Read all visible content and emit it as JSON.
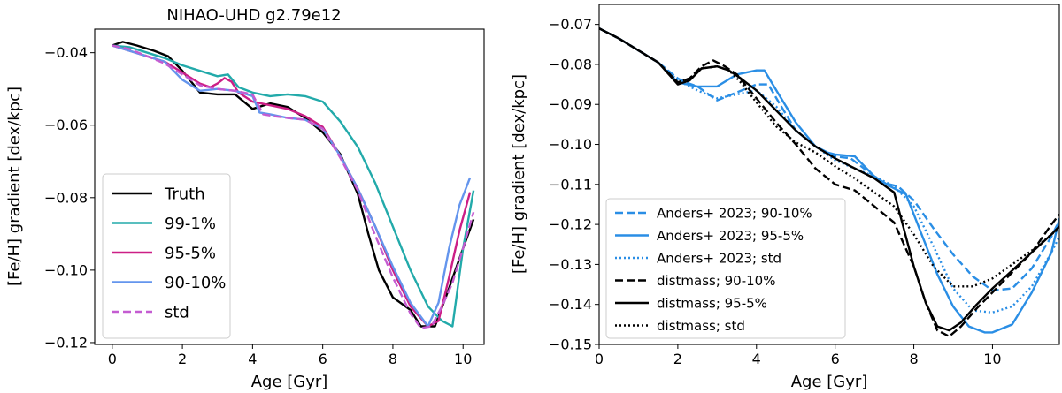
{
  "chart_data": [
    {
      "type": "line",
      "title": "NIHAO-UHD g2.79e12",
      "xlabel": "Age [Gyr]",
      "ylabel": "[Fe/H] gradient [dex/kpc]",
      "xlim": [
        -0.5,
        10.6
      ],
      "ylim": [
        -0.1205,
        -0.0335
      ],
      "xticks": [
        0,
        2,
        4,
        6,
        8,
        10
      ],
      "xtick_labels": [
        "0",
        "2",
        "4",
        "6",
        "8",
        "10"
      ],
      "yticks": [
        -0.04,
        -0.06,
        -0.08,
        -0.1,
        -0.12
      ],
      "ytick_labels": [
        "−0.04",
        "−0.06",
        "−0.08",
        "−0.10",
        "−0.12"
      ],
      "legend": "lower-left",
      "series": [
        {
          "name": "Truth",
          "color": "#000000",
          "dash": "solid",
          "x": [
            0,
            0.3,
            0.7,
            1.2,
            1.6,
            2.0,
            2.5,
            3.0,
            3.5,
            4.0,
            4.5,
            5.0,
            5.5,
            6.0,
            6.5,
            7.0,
            7.3,
            7.6,
            8.0,
            8.5,
            8.8,
            9.2,
            9.6,
            10.0,
            10.3
          ],
          "y": [
            -0.038,
            -0.037,
            -0.038,
            -0.0395,
            -0.041,
            -0.045,
            -0.051,
            -0.0515,
            -0.0515,
            -0.0555,
            -0.054,
            -0.055,
            -0.058,
            -0.062,
            -0.068,
            -0.079,
            -0.09,
            -0.1,
            -0.1075,
            -0.111,
            -0.1155,
            -0.1155,
            -0.105,
            -0.094,
            -0.086
          ]
        },
        {
          "name": "99-1%",
          "color": "#22aaaa",
          "dash": "solid",
          "x": [
            0,
            0.5,
            1.0,
            1.5,
            2.0,
            2.5,
            3.0,
            3.3,
            3.6,
            4.0,
            4.5,
            5.0,
            5.5,
            6.0,
            6.5,
            7.0,
            7.5,
            8.0,
            8.5,
            9.0,
            9.4,
            9.7,
            10.0,
            10.3
          ],
          "y": [
            -0.038,
            -0.0385,
            -0.04,
            -0.0415,
            -0.0435,
            -0.045,
            -0.0465,
            -0.046,
            -0.0495,
            -0.051,
            -0.052,
            -0.0515,
            -0.052,
            -0.0535,
            -0.059,
            -0.066,
            -0.076,
            -0.088,
            -0.1,
            -0.11,
            -0.114,
            -0.1155,
            -0.094,
            -0.078
          ]
        },
        {
          "name": "95-5%",
          "color": "#cc1f86",
          "dash": "solid",
          "x": [
            0,
            0.5,
            1.0,
            1.5,
            2.0,
            2.5,
            2.8,
            3.0,
            3.2,
            3.4,
            3.6,
            4.0,
            4.5,
            5.0,
            5.5,
            6.0,
            6.5,
            7.0,
            7.5,
            8.0,
            8.5,
            9.0,
            9.3,
            9.6,
            9.9,
            10.2
          ],
          "y": [
            -0.038,
            -0.0395,
            -0.041,
            -0.0425,
            -0.0455,
            -0.0485,
            -0.0495,
            -0.0485,
            -0.047,
            -0.048,
            -0.051,
            -0.0535,
            -0.0545,
            -0.0555,
            -0.0575,
            -0.0605,
            -0.0685,
            -0.0775,
            -0.088,
            -0.1,
            -0.11,
            -0.1155,
            -0.114,
            -0.102,
            -0.089,
            -0.0785
          ]
        },
        {
          "name": "90-10%",
          "color": "#6495ed",
          "dash": "solid",
          "x": [
            0,
            0.5,
            1.0,
            1.5,
            2.0,
            2.5,
            3.0,
            3.5,
            4.0,
            4.2,
            4.5,
            5.0,
            5.5,
            6.0,
            6.5,
            7.0,
            7.5,
            8.0,
            8.5,
            9.0,
            9.3,
            9.6,
            9.9,
            10.2
          ],
          "y": [
            -0.038,
            -0.0395,
            -0.041,
            -0.0425,
            -0.0475,
            -0.0505,
            -0.05,
            -0.0505,
            -0.052,
            -0.0565,
            -0.057,
            -0.058,
            -0.0585,
            -0.061,
            -0.0685,
            -0.0775,
            -0.088,
            -0.099,
            -0.109,
            -0.1155,
            -0.109,
            -0.094,
            -0.082,
            -0.0745
          ]
        },
        {
          "name": "std",
          "color": "#c45cd1",
          "dash": "dashed",
          "x": [
            0,
            0.5,
            1.0,
            1.5,
            2.0,
            2.5,
            3.0,
            3.5,
            4.0,
            4.3,
            4.6,
            5.0,
            5.5,
            6.0,
            6.5,
            7.0,
            7.5,
            8.0,
            8.5,
            8.8,
            9.1,
            9.4,
            9.7,
            10.0,
            10.3
          ],
          "y": [
            -0.038,
            -0.039,
            -0.041,
            -0.043,
            -0.046,
            -0.049,
            -0.05,
            -0.0505,
            -0.0515,
            -0.057,
            -0.0575,
            -0.058,
            -0.0585,
            -0.061,
            -0.069,
            -0.078,
            -0.0905,
            -0.102,
            -0.112,
            -0.116,
            -0.1155,
            -0.11,
            -0.1035,
            -0.094,
            -0.084
          ]
        }
      ],
      "legend_entries": [
        {
          "label": "Truth",
          "color": "#000000",
          "dash": "solid"
        },
        {
          "label": "99-1%",
          "color": "#22aaaa",
          "dash": "solid"
        },
        {
          "label": "95-5%",
          "color": "#cc1f86",
          "dash": "solid"
        },
        {
          "label": "90-10%",
          "color": "#6495ed",
          "dash": "solid"
        },
        {
          "label": "std",
          "color": "#c45cd1",
          "dash": "dashed"
        }
      ]
    },
    {
      "type": "line",
      "title": "",
      "xlabel": "Age [Gyr]",
      "ylabel": "[Fe/H] gradient [dex/kpc]",
      "xlim": [
        0,
        11.7
      ],
      "ylim": [
        -0.15,
        -0.065
      ],
      "xticks": [
        0,
        2,
        4,
        6,
        8,
        10
      ],
      "xtick_labels": [
        "0",
        "2",
        "4",
        "6",
        "8",
        "10"
      ],
      "yticks": [
        -0.07,
        -0.08,
        -0.09,
        -0.1,
        -0.11,
        -0.12,
        -0.13,
        -0.14,
        -0.15
      ],
      "ytick_labels": [
        "−0.07",
        "−0.08",
        "−0.09",
        "−0.10",
        "−0.11",
        "−0.12",
        "−0.13",
        "−0.14",
        "−0.15"
      ],
      "legend": "lower-left",
      "series": [
        {
          "name": "Anders+ 2023; 90-10%",
          "color": "#2a8ee5",
          "dash": "dashed",
          "x": [
            0,
            0.5,
            1.0,
            1.5,
            2.0,
            2.2,
            2.5,
            3.0,
            3.5,
            4.0,
            4.3,
            4.6,
            5.0,
            5.5,
            6.0,
            6.4,
            6.8,
            7.2,
            7.6,
            8.0,
            8.5,
            9.0,
            9.5,
            10.0,
            10.5,
            11.0,
            11.5,
            11.7
          ],
          "y": [
            -0.071,
            -0.0735,
            -0.0765,
            -0.0795,
            -0.0835,
            -0.0845,
            -0.0855,
            -0.089,
            -0.087,
            -0.085,
            -0.085,
            -0.09,
            -0.0965,
            -0.1005,
            -0.103,
            -0.1035,
            -0.1065,
            -0.1095,
            -0.1105,
            -0.114,
            -0.121,
            -0.1275,
            -0.133,
            -0.1365,
            -0.136,
            -0.131,
            -0.123,
            -0.119
          ]
        },
        {
          "name": "Anders+ 2023; 95-5%",
          "color": "#2a8ee5",
          "dash": "solid",
          "x": [
            0,
            0.5,
            1.0,
            1.5,
            2.0,
            2.5,
            3.0,
            3.5,
            4.0,
            4.2,
            4.6,
            5.0,
            5.5,
            5.8,
            6.0,
            6.5,
            7.0,
            7.4,
            7.8,
            8.2,
            8.6,
            9.0,
            9.4,
            9.8,
            10.0,
            10.5,
            11.0,
            11.5,
            11.7
          ],
          "y": [
            -0.071,
            -0.0735,
            -0.0765,
            -0.0795,
            -0.0845,
            -0.0855,
            -0.0855,
            -0.0825,
            -0.0815,
            -0.0815,
            -0.088,
            -0.0945,
            -0.1005,
            -0.102,
            -0.1025,
            -0.103,
            -0.108,
            -0.1105,
            -0.1125,
            -0.1225,
            -0.1325,
            -0.1405,
            -0.1455,
            -0.147,
            -0.147,
            -0.145,
            -0.137,
            -0.127,
            -0.1185
          ]
        },
        {
          "name": "Anders+ 2023; std",
          "color": "#2a8ee5",
          "dash": "dotted",
          "x": [
            0,
            0.5,
            1.0,
            1.5,
            2.0,
            2.5,
            3.0,
            3.5,
            4.0,
            4.5,
            5.0,
            5.5,
            6.0,
            6.5,
            7.0,
            7.5,
            8.0,
            8.5,
            9.0,
            9.5,
            10.0,
            10.5,
            11.0,
            11.5,
            11.7
          ],
          "y": [
            -0.071,
            -0.0735,
            -0.0765,
            -0.0795,
            -0.084,
            -0.0865,
            -0.0885,
            -0.0875,
            -0.0865,
            -0.0905,
            -0.0965,
            -0.1005,
            -0.104,
            -0.106,
            -0.108,
            -0.1105,
            -0.1155,
            -0.1255,
            -0.136,
            -0.1415,
            -0.142,
            -0.1405,
            -0.1355,
            -0.127,
            -0.123
          ]
        },
        {
          "name": "distmass; 90-10%",
          "color": "#000000",
          "dash": "dashed",
          "x": [
            0,
            0.5,
            1.0,
            1.5,
            2.0,
            2.3,
            2.6,
            2.9,
            3.2,
            3.5,
            4.0,
            4.5,
            5.0,
            5.5,
            6.0,
            6.5,
            7.0,
            7.5,
            8.0,
            8.3,
            8.6,
            8.9,
            9.2,
            9.6,
            10.0,
            10.5,
            11.0,
            11.5,
            11.7
          ],
          "y": [
            -0.071,
            -0.0735,
            -0.0765,
            -0.0795,
            -0.0845,
            -0.0835,
            -0.0805,
            -0.079,
            -0.0805,
            -0.0825,
            -0.0885,
            -0.0945,
            -0.1,
            -0.106,
            -0.11,
            -0.1115,
            -0.1155,
            -0.1195,
            -0.1305,
            -0.1395,
            -0.1465,
            -0.148,
            -0.1455,
            -0.141,
            -0.137,
            -0.132,
            -0.127,
            -0.12,
            -0.1175
          ]
        },
        {
          "name": "distmass; 95-5%",
          "color": "#000000",
          "dash": "solid",
          "x": [
            0,
            0.5,
            1.0,
            1.5,
            2.0,
            2.3,
            2.6,
            3.0,
            3.3,
            3.6,
            4.0,
            4.5,
            5.0,
            5.5,
            6.0,
            6.5,
            7.0,
            7.5,
            8.0,
            8.3,
            8.6,
            8.9,
            9.2,
            9.6,
            10.0,
            10.5,
            11.0,
            11.5,
            11.7
          ],
          "y": [
            -0.071,
            -0.0735,
            -0.0765,
            -0.0795,
            -0.085,
            -0.084,
            -0.081,
            -0.0805,
            -0.0815,
            -0.0835,
            -0.0865,
            -0.0915,
            -0.0965,
            -0.1005,
            -0.1035,
            -0.106,
            -0.1085,
            -0.112,
            -0.1305,
            -0.1395,
            -0.1455,
            -0.1465,
            -0.1445,
            -0.14,
            -0.136,
            -0.1315,
            -0.127,
            -0.1225,
            -0.1205
          ]
        },
        {
          "name": "distmass; std",
          "color": "#000000",
          "dash": "dotted",
          "x": [
            0,
            0.5,
            1.0,
            1.5,
            2.0,
            2.3,
            2.6,
            3.0,
            3.3,
            3.6,
            4.0,
            4.5,
            5.0,
            5.5,
            6.0,
            6.5,
            7.0,
            7.5,
            8.0,
            8.5,
            9.0,
            9.5,
            10.0,
            10.5,
            11.0,
            11.5,
            11.7
          ],
          "y": [
            -0.071,
            -0.0735,
            -0.0765,
            -0.0795,
            -0.0845,
            -0.0835,
            -0.081,
            -0.0805,
            -0.0815,
            -0.0845,
            -0.0895,
            -0.0955,
            -0.0995,
            -0.102,
            -0.1055,
            -0.1085,
            -0.112,
            -0.1155,
            -0.1225,
            -0.1305,
            -0.1355,
            -0.1355,
            -0.1335,
            -0.13,
            -0.1265,
            -0.1225,
            -0.121
          ]
        }
      ],
      "legend_entries": [
        {
          "label": "Anders+ 2023; 90-10%",
          "color": "#2a8ee5",
          "dash": "dashed"
        },
        {
          "label": "Anders+ 2023; 95-5%",
          "color": "#2a8ee5",
          "dash": "solid"
        },
        {
          "label": "Anders+ 2023; std",
          "color": "#2a8ee5",
          "dash": "dotted"
        },
        {
          "label": "distmass; 90-10%",
          "color": "#000000",
          "dash": "dashed"
        },
        {
          "label": "distmass; 95-5%",
          "color": "#000000",
          "dash": "solid"
        },
        {
          "label": "distmass; std",
          "color": "#000000",
          "dash": "dotted"
        }
      ]
    }
  ]
}
